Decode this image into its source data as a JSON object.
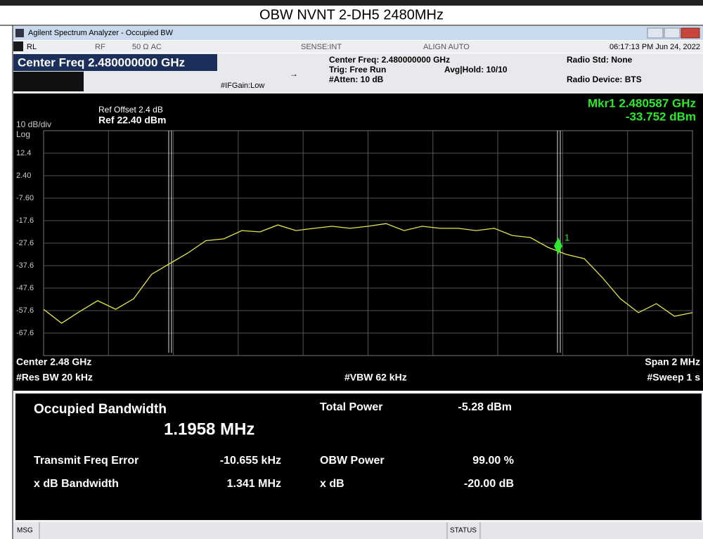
{
  "page_title": "OBW NVNT 2-DH5 2480MHz",
  "window": {
    "title": "Agilent Spectrum Analyzer - Occupied BW",
    "status": [
      "RL",
      "RF",
      "50 Ω  AC",
      "SENSE:INT",
      "ALIGN AUTO",
      "06:17:13 PM Jun 24, 2022"
    ],
    "center_freq": "Center Freq 2.480000000 GHz",
    "info": [
      "Center Freq: 2.480000000 GHz",
      "Trig: Free Run",
      "#Atten: 10 dB",
      "Avg|Hold: 10/10",
      "#IFGain:Low",
      "Radio Std: None",
      "Radio Device: BTS"
    ]
  },
  "plot": {
    "ref_offset": "Ref Offset 2.4 dB",
    "ref_level": "Ref 22.40 dBm",
    "scale": "10 dB/div",
    "scale_type": "Log",
    "marker_freq": "Mkr1  2.480587 GHz",
    "marker_level": "-33.752 dBm",
    "marker_id": "1",
    "center": "Center  2.48 GHz",
    "res_bw": "#Res BW  20 kHz",
    "vbw": "#VBW  62 kHz",
    "span": "Span 2 MHz",
    "sweep": "#Sweep  1 s"
  },
  "chart_data": {
    "type": "line",
    "color": "#e6e64a",
    "ylim": [
      -77.6,
      22.4
    ],
    "yticks": [
      12.4,
      {
        "value": 2.4,
        "label": "2.40"
      },
      {
        "value": -7.6,
        "label": "-7.60"
      },
      -17.6,
      -27.6,
      -37.6,
      -47.6,
      -57.6,
      -67.6
    ],
    "values": [
      -57,
      -63.2,
      -58,
      -53.2,
      -57,
      -52.3,
      -41.4,
      -36.7,
      -32,
      -26.5,
      -25.7,
      -22,
      -22.6,
      -19.5,
      -22,
      -21,
      -20.1,
      -21,
      -20.1,
      -18.9,
      -22,
      -20.1,
      -21,
      -21,
      -22,
      -21,
      -24.2,
      -25.1,
      -29.5,
      -32.6,
      -34.5,
      -42.9,
      -52.3,
      -58.5,
      -54.5,
      -60.1,
      -58.5
    ]
  },
  "results": {
    "title": "Occupied Bandwidth",
    "obw": "1.1958 MHz",
    "rows": [
      [
        "Total Power",
        "-5.28 dBm"
      ],
      [
        "Transmit Freq Error",
        "-10.655 kHz"
      ],
      [
        "OBW Power",
        "99.00 %"
      ],
      [
        "x dB Bandwidth",
        "1.341 MHz"
      ],
      [
        "x dB",
        "-20.00 dB"
      ]
    ]
  },
  "statusbar": [
    "MSG",
    "STATUS"
  ]
}
